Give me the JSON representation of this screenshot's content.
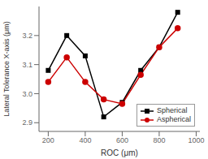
{
  "chart_data": {
    "type": "line",
    "x": [
      200,
      300,
      400,
      500,
      600,
      700,
      800,
      900
    ],
    "series": [
      {
        "name": "Spherical",
        "color": "#000000",
        "marker": "square",
        "values": [
          3.08,
          3.2,
          3.13,
          2.92,
          2.97,
          3.08,
          3.16,
          3.28
        ]
      },
      {
        "name": "Aspherical",
        "color": "#cc0000",
        "marker": "circle",
        "values": [
          3.04,
          3.125,
          3.04,
          2.98,
          2.965,
          3.065,
          3.16,
          3.225
        ]
      }
    ],
    "xlabel": "ROC (μm)",
    "ylabel": "Lateral Tolerance X-axis (μm)",
    "xlim": [
      150,
      1020
    ],
    "ylim": [
      2.87,
      3.3
    ],
    "xticks": [
      200,
      400,
      600,
      800,
      1000
    ],
    "yticks": [
      2.9,
      {
        "value": 3.0,
        "label": "3.0"
      },
      3.1,
      3.2
    ],
    "legend": "lower right",
    "grid": false
  }
}
